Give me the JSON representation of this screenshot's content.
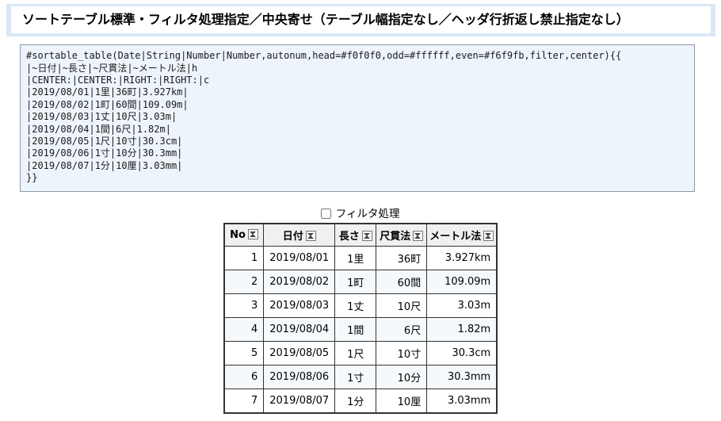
{
  "theme": {
    "heading_frame_color": "#d9e8f8",
    "code_background": "#eef4fc",
    "code_border_color": "#8f9aa5",
    "table_border_color": "#333333"
  },
  "heading": {
    "title": "ソートテーブル標準・フィルタ処理指定／中央寄せ（テーブル幅指定なし／ヘッダ行折返し禁止指定なし）"
  },
  "code_block": {
    "lines": [
      "#sortable_table(Date|String|Number|Number,autonum,head=#f0f0f0,odd=#ffffff,even=#f6f9fb,filter,center){{",
      "|~日付|~長さ|~尺貫法|~メートル法|h",
      "|CENTER:|CENTER:|RIGHT:|RIGHT:|c",
      "|2019/08/01|1里|36町|3.927km|",
      "|2019/08/02|1町|60間|109.09m|",
      "|2019/08/03|1丈|10尺|3.03m|",
      "|2019/08/04|1間|6尺|1.82m|",
      "|2019/08/05|1尺|10寸|30.3cm|",
      "|2019/08/06|1寸|10分|30.3mm|",
      "|2019/08/07|1分|10厘|3.03mm|",
      "}}"
    ]
  },
  "filter": {
    "label": "フィルタ処理",
    "checked": false
  },
  "table": {
    "colors": {
      "head": "#f0f0f0",
      "odd": "#ffffff",
      "even": "#f6f9fb"
    },
    "sort_icon": "sort-toggle-icon",
    "columns": [
      {
        "key": "no",
        "label": "No",
        "align": "right"
      },
      {
        "key": "date",
        "label": "日付",
        "align": "center"
      },
      {
        "key": "length",
        "label": "長さ",
        "align": "center"
      },
      {
        "key": "shaku",
        "label": "尺貫法",
        "align": "right"
      },
      {
        "key": "metric",
        "label": "メートル法",
        "align": "right"
      }
    ],
    "rows": [
      [
        "1",
        "2019/08/01",
        "1里",
        "36町",
        "3.927km"
      ],
      [
        "2",
        "2019/08/02",
        "1町",
        "60間",
        "109.09m"
      ],
      [
        "3",
        "2019/08/03",
        "1丈",
        "10尺",
        "3.03m"
      ],
      [
        "4",
        "2019/08/04",
        "1間",
        "6尺",
        "1.82m"
      ],
      [
        "5",
        "2019/08/05",
        "1尺",
        "10寸",
        "30.3cm"
      ],
      [
        "6",
        "2019/08/06",
        "1寸",
        "10分",
        "30.3mm"
      ],
      [
        "7",
        "2019/08/07",
        "1分",
        "10厘",
        "3.03mm"
      ]
    ]
  }
}
